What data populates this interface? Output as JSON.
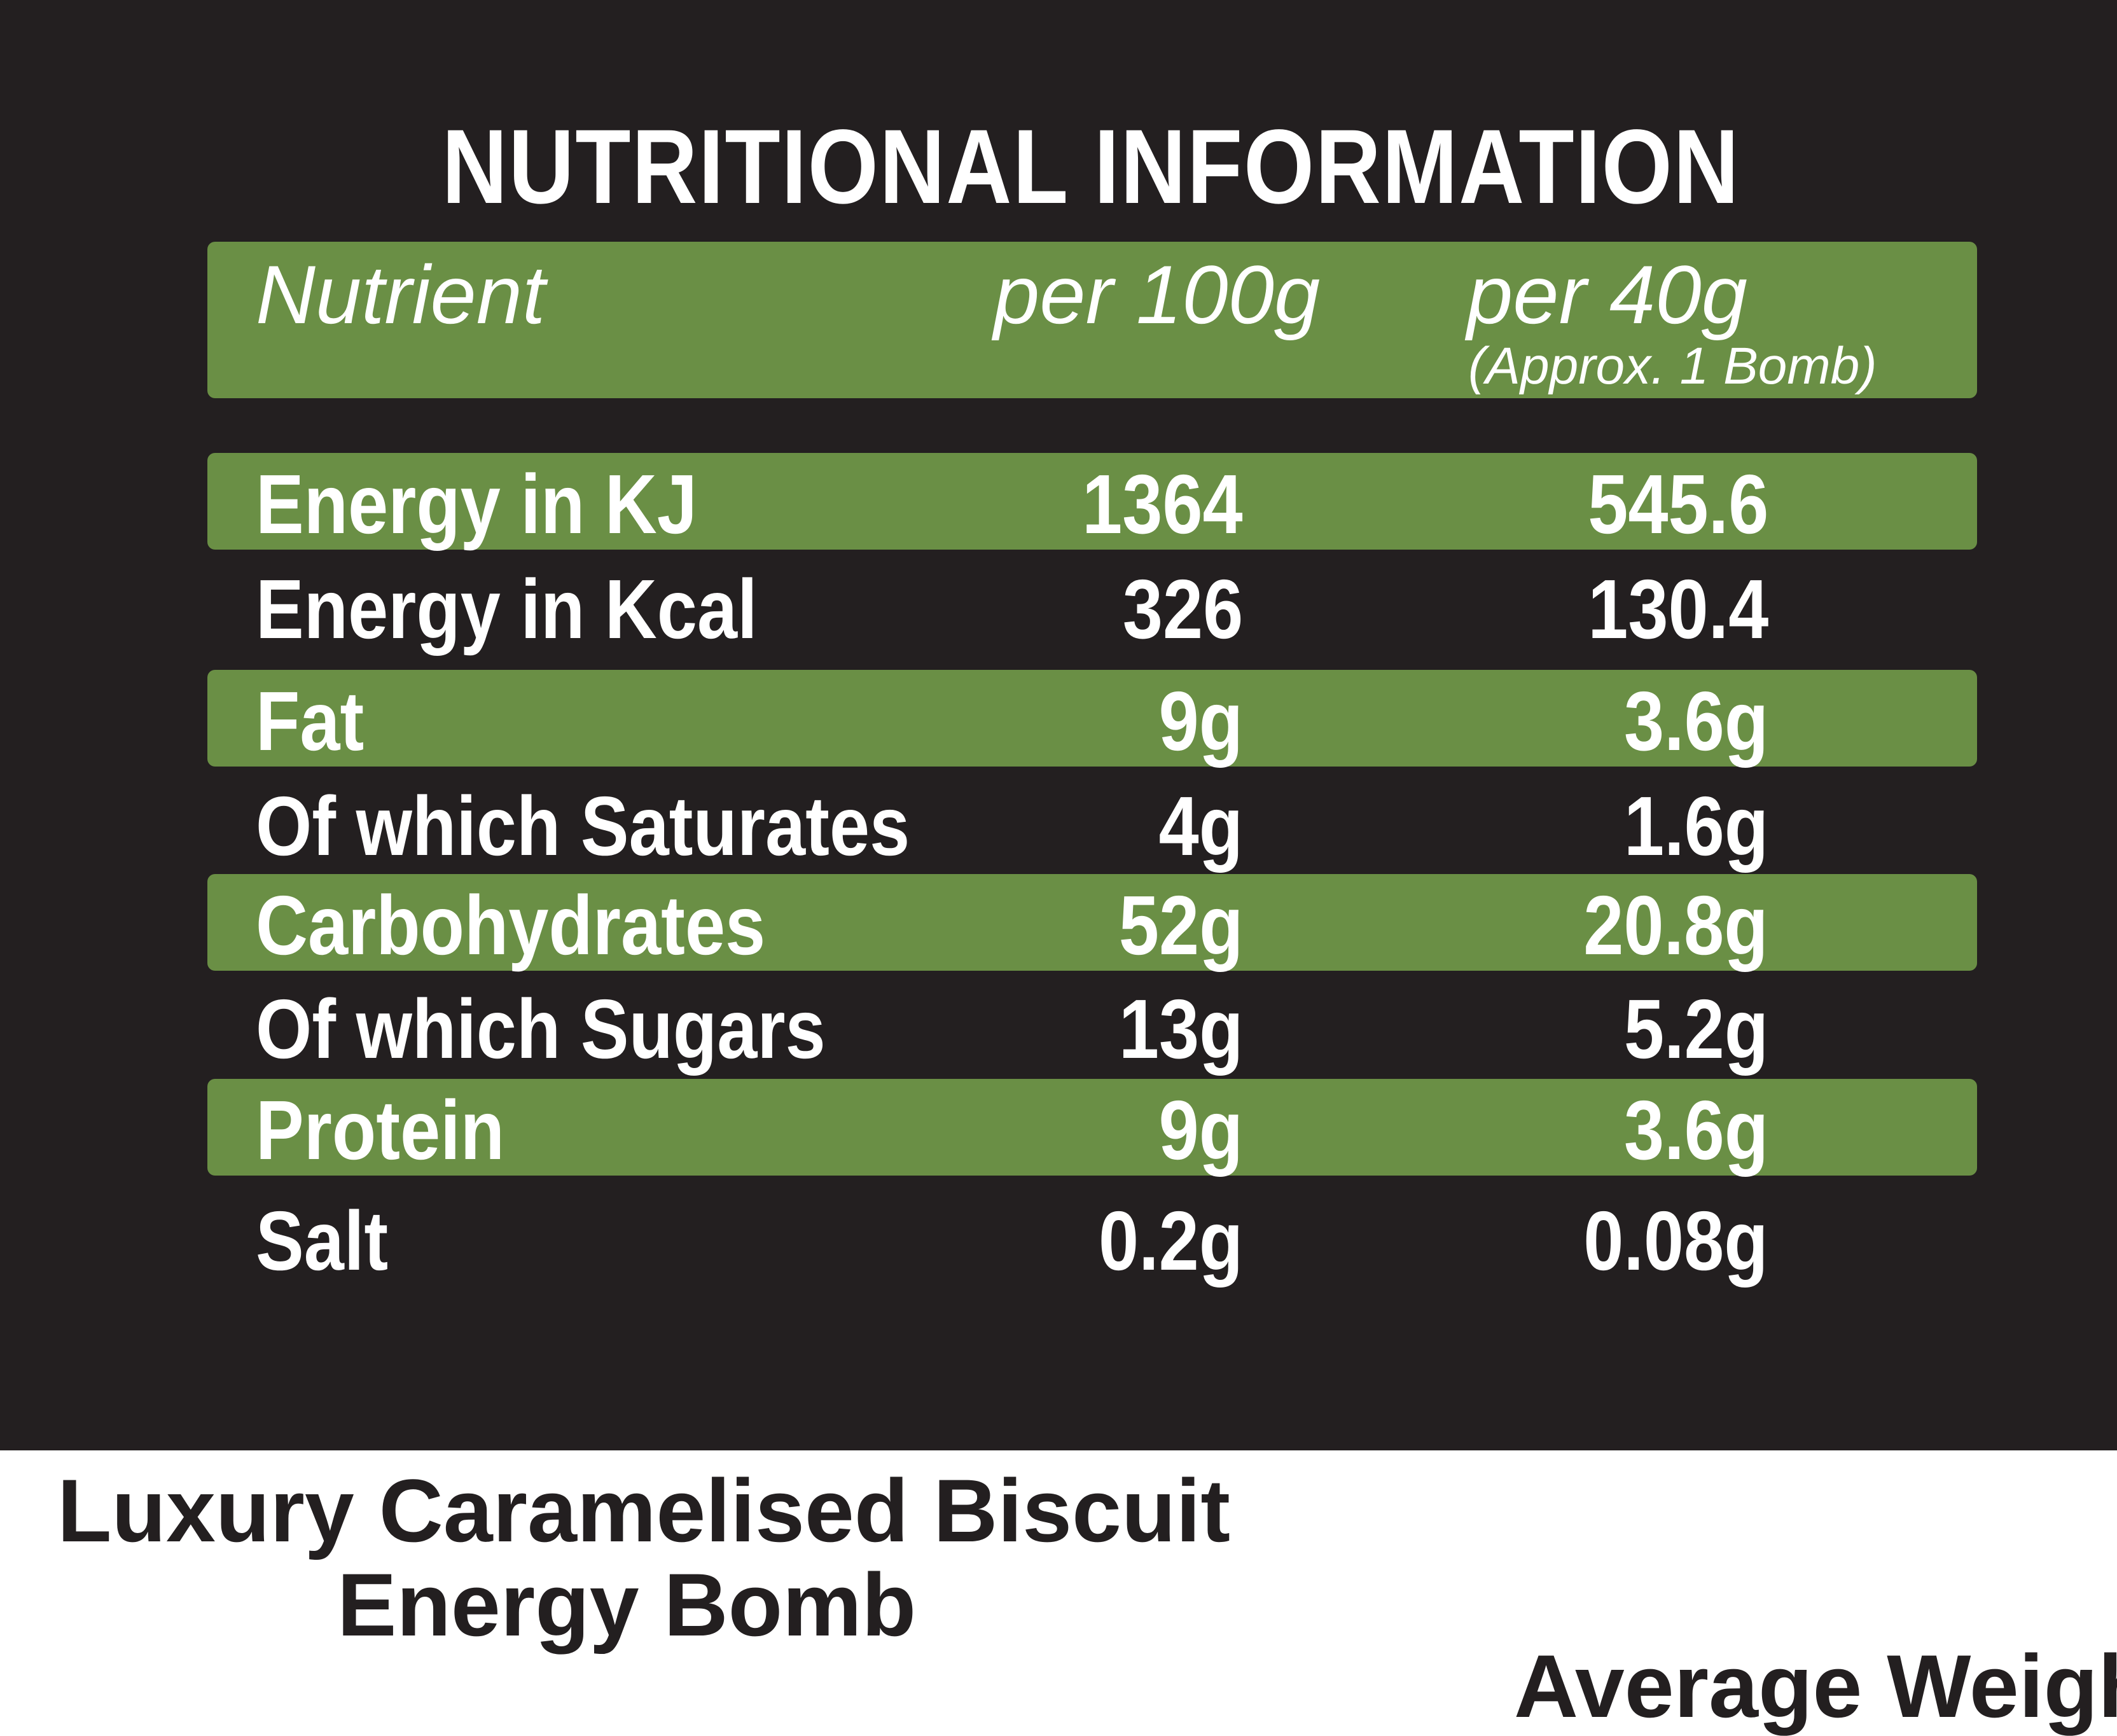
{
  "title": "NUTRITIONAL INFORMATION",
  "header": {
    "nutrient": "Nutrient",
    "per_100g": "per 100g",
    "per_40g": "per 40g",
    "per_40g_note": "(Approx. 1 Bomb)"
  },
  "rows": [
    {
      "name": "Energy in KJ",
      "per_100g": "1364",
      "per_40g": "545.6"
    },
    {
      "name": "Energy in Kcal",
      "per_100g": "326",
      "per_40g": "130.4"
    },
    {
      "name": "Fat",
      "per_100g": "9g",
      "per_40g": "3.6g"
    },
    {
      "name": "Of which Saturates",
      "per_100g": "4g",
      "per_40g": "1.6g"
    },
    {
      "name": "Carbohydrates",
      "per_100g": "52g",
      "per_40g": "20.8g"
    },
    {
      "name": "Of which Sugars",
      "per_100g": "13g",
      "per_40g": "5.2g"
    },
    {
      "name": "Protein",
      "per_100g": "9g",
      "per_40g": "3.6g"
    },
    {
      "name": "Salt",
      "per_100g": "0.2g",
      "per_40g": "0.08g"
    }
  ],
  "product": {
    "line1": "Luxury Caramelised Biscuit",
    "line2": "Energy Bomb"
  },
  "partial_text": "Average Weight",
  "colors": {
    "background": "#231f20",
    "band": "#6a8f45",
    "text": "#ffffff"
  }
}
